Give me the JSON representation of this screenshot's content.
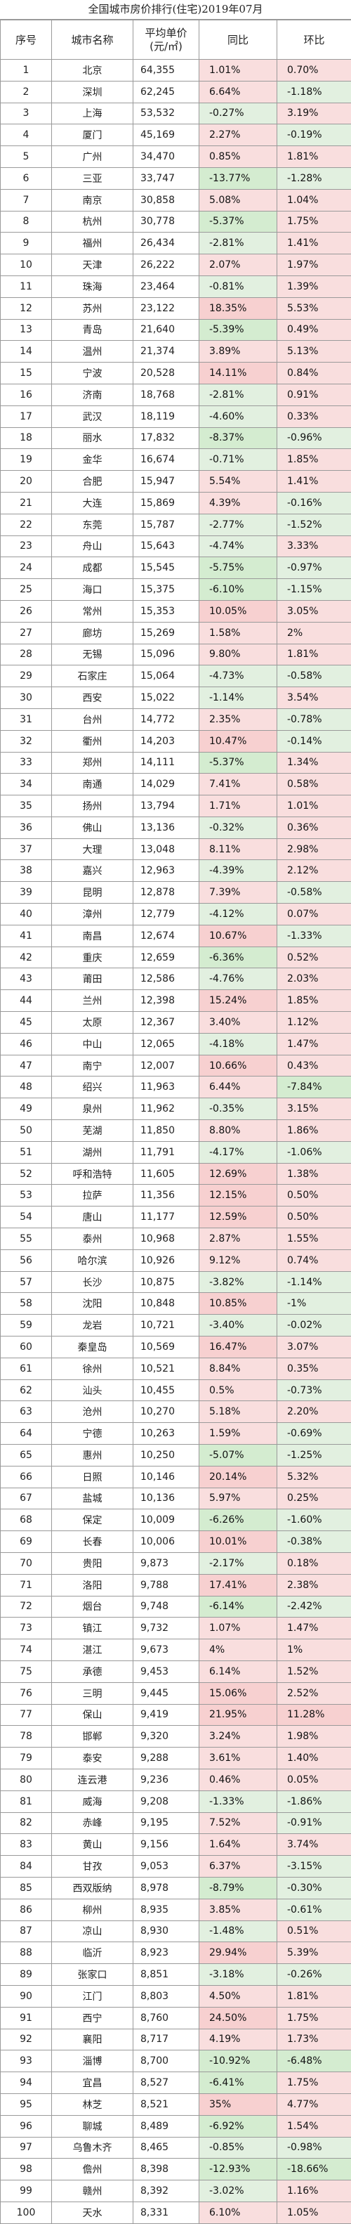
{
  "title": "全国城市房价排行(住宅)2019年07月",
  "headers": {
    "no": "序号",
    "city": "城市名称",
    "price_line1": "平均单价",
    "price_line2": "(元/㎡)",
    "yoy": "同比",
    "mom": "环比"
  },
  "rows": [
    [
      "1",
      "北京",
      "64,355",
      "1.01%",
      "0.70%"
    ],
    [
      "2",
      "深圳",
      "62,245",
      "6.64%",
      "-1.18%"
    ],
    [
      "3",
      "上海",
      "53,532",
      "-0.27%",
      "3.19%"
    ],
    [
      "4",
      "厦门",
      "45,169",
      "2.27%",
      "-0.19%"
    ],
    [
      "5",
      "广州",
      "34,470",
      "0.85%",
      "1.81%"
    ],
    [
      "6",
      "三亚",
      "33,747",
      "-13.77%",
      "-1.28%"
    ],
    [
      "7",
      "南京",
      "30,858",
      "5.08%",
      "1.04%"
    ],
    [
      "8",
      "杭州",
      "30,778",
      "-5.37%",
      "1.75%"
    ],
    [
      "9",
      "福州",
      "26,434",
      "-2.81%",
      "1.41%"
    ],
    [
      "10",
      "天津",
      "26,222",
      "2.07%",
      "1.97%"
    ],
    [
      "11",
      "珠海",
      "23,464",
      "-0.81%",
      "1.39%"
    ],
    [
      "12",
      "苏州",
      "23,122",
      "18.35%",
      "5.53%"
    ],
    [
      "13",
      "青岛",
      "21,640",
      "-5.39%",
      "0.49%"
    ],
    [
      "14",
      "温州",
      "21,374",
      "3.89%",
      "5.13%"
    ],
    [
      "15",
      "宁波",
      "20,528",
      "14.11%",
      "0.84%"
    ],
    [
      "16",
      "济南",
      "18,768",
      "-2.81%",
      "0.91%"
    ],
    [
      "17",
      "武汉",
      "18,119",
      "-4.60%",
      "0.33%"
    ],
    [
      "18",
      "丽水",
      "17,832",
      "-8.37%",
      "-0.96%"
    ],
    [
      "19",
      "金华",
      "16,674",
      "-0.71%",
      "1.85%"
    ],
    [
      "20",
      "合肥",
      "15,947",
      "5.54%",
      "1.41%"
    ],
    [
      "21",
      "大连",
      "15,869",
      "4.39%",
      "-0.16%"
    ],
    [
      "22",
      "东莞",
      "15,787",
      "-2.77%",
      "-1.52%"
    ],
    [
      "23",
      "舟山",
      "15,643",
      "-4.74%",
      "3.33%"
    ],
    [
      "24",
      "成都",
      "15,545",
      "-5.75%",
      "-0.97%"
    ],
    [
      "25",
      "海口",
      "15,375",
      "-6.10%",
      "-1.15%"
    ],
    [
      "26",
      "常州",
      "15,353",
      "10.05%",
      "3.05%"
    ],
    [
      "27",
      "廊坊",
      "15,269",
      "1.58%",
      "2%"
    ],
    [
      "28",
      "无锡",
      "15,096",
      "9.80%",
      "1.81%"
    ],
    [
      "29",
      "石家庄",
      "15,064",
      "-4.73%",
      "-0.58%"
    ],
    [
      "30",
      "西安",
      "15,022",
      "-1.14%",
      "3.54%"
    ],
    [
      "31",
      "台州",
      "14,772",
      "2.35%",
      "-0.78%"
    ],
    [
      "32",
      "衢州",
      "14,203",
      "10.47%",
      "-0.14%"
    ],
    [
      "33",
      "郑州",
      "14,111",
      "-5.37%",
      "1.34%"
    ],
    [
      "34",
      "南通",
      "14,029",
      "7.41%",
      "0.58%"
    ],
    [
      "35",
      "扬州",
      "13,794",
      "1.71%",
      "1.01%"
    ],
    [
      "36",
      "佛山",
      "13,136",
      "-0.32%",
      "0.36%"
    ],
    [
      "37",
      "大理",
      "13,048",
      "8.11%",
      "2.98%"
    ],
    [
      "38",
      "嘉兴",
      "12,963",
      "-4.39%",
      "2.12%"
    ],
    [
      "39",
      "昆明",
      "12,878",
      "7.39%",
      "-0.58%"
    ],
    [
      "40",
      "漳州",
      "12,779",
      "-4.12%",
      "0.07%"
    ],
    [
      "41",
      "南昌",
      "12,674",
      "10.67%",
      "-1.33%"
    ],
    [
      "42",
      "重庆",
      "12,659",
      "-6.36%",
      "0.52%"
    ],
    [
      "43",
      "莆田",
      "12,586",
      "-4.76%",
      "2.03%"
    ],
    [
      "44",
      "兰州",
      "12,398",
      "15.24%",
      "1.85%"
    ],
    [
      "45",
      "太原",
      "12,367",
      "3.40%",
      "1.12%"
    ],
    [
      "46",
      "中山",
      "12,065",
      "-4.18%",
      "1.47%"
    ],
    [
      "47",
      "南宁",
      "12,007",
      "10.66%",
      "0.43%"
    ],
    [
      "48",
      "绍兴",
      "11,963",
      "6.44%",
      "-7.84%"
    ],
    [
      "49",
      "泉州",
      "11,962",
      "-0.35%",
      "3.15%"
    ],
    [
      "50",
      "芜湖",
      "11,850",
      "8.80%",
      "1.86%"
    ],
    [
      "51",
      "湖州",
      "11,791",
      "-4.17%",
      "-1.06%"
    ],
    [
      "52",
      "呼和浩特",
      "11,605",
      "12.69%",
      "1.38%"
    ],
    [
      "53",
      "拉萨",
      "11,356",
      "12.15%",
      "0.50%"
    ],
    [
      "54",
      "唐山",
      "11,177",
      "12.59%",
      "0.50%"
    ],
    [
      "55",
      "泰州",
      "10,968",
      "2.87%",
      "1.55%"
    ],
    [
      "56",
      "哈尔滨",
      "10,926",
      "9.12%",
      "0.74%"
    ],
    [
      "57",
      "长沙",
      "10,875",
      "-3.82%",
      "-1.14%"
    ],
    [
      "58",
      "沈阳",
      "10,848",
      "10.85%",
      "-1%"
    ],
    [
      "59",
      "龙岩",
      "10,721",
      "-3.40%",
      "-0.02%"
    ],
    [
      "60",
      "秦皇岛",
      "10,569",
      "16.47%",
      "3.07%"
    ],
    [
      "61",
      "徐州",
      "10,521",
      "8.84%",
      "0.35%"
    ],
    [
      "62",
      "汕头",
      "10,455",
      "0.5%",
      "-0.73%"
    ],
    [
      "63",
      "沧州",
      "10,270",
      "5.18%",
      "2.20%"
    ],
    [
      "64",
      "宁德",
      "10,263",
      "1.59%",
      "-0.69%"
    ],
    [
      "65",
      "惠州",
      "10,250",
      "-5.07%",
      "-1.25%"
    ],
    [
      "66",
      "日照",
      "10,146",
      "20.14%",
      "5.32%"
    ],
    [
      "67",
      "盐城",
      "10,136",
      "5.97%",
      "0.25%"
    ],
    [
      "68",
      "保定",
      "10,009",
      "-6.26%",
      "-1.60%"
    ],
    [
      "69",
      "长春",
      "10,006",
      "10.01%",
      "-0.38%"
    ],
    [
      "70",
      "贵阳",
      "9,873",
      "-2.17%",
      "0.18%"
    ],
    [
      "71",
      "洛阳",
      "9,788",
      "17.41%",
      "2.38%"
    ],
    [
      "72",
      "烟台",
      "9,748",
      "-6.14%",
      "-2.42%"
    ],
    [
      "73",
      "镇江",
      "9,732",
      "1.07%",
      "1.47%"
    ],
    [
      "74",
      "湛江",
      "9,673",
      "4%",
      "1%"
    ],
    [
      "75",
      "承德",
      "9,453",
      "6.14%",
      "1.52%"
    ],
    [
      "76",
      "三明",
      "9,445",
      "15.06%",
      "2.52%"
    ],
    [
      "77",
      "保山",
      "9,419",
      "21.95%",
      "11.28%"
    ],
    [
      "78",
      "邯郸",
      "9,320",
      "3.24%",
      "1.98%"
    ],
    [
      "79",
      "泰安",
      "9,288",
      "3.61%",
      "1.40%"
    ],
    [
      "80",
      "连云港",
      "9,236",
      "0.46%",
      "0.05%"
    ],
    [
      "81",
      "威海",
      "9,208",
      "-1.33%",
      "-1.86%"
    ],
    [
      "82",
      "赤峰",
      "9,195",
      "7.52%",
      "-0.91%"
    ],
    [
      "83",
      "黄山",
      "9,156",
      "1.64%",
      "3.74%"
    ],
    [
      "84",
      "甘孜",
      "9,053",
      "6.37%",
      "-3.15%"
    ],
    [
      "85",
      "西双版纳",
      "8,978",
      "-8.79%",
      "-0.30%"
    ],
    [
      "86",
      "柳州",
      "8,935",
      "3.85%",
      "-0.61%"
    ],
    [
      "87",
      "凉山",
      "8,930",
      "-1.48%",
      "0.51%"
    ],
    [
      "88",
      "临沂",
      "8,923",
      "29.94%",
      "5.39%"
    ],
    [
      "89",
      "张家口",
      "8,851",
      "-3.18%",
      "-0.26%"
    ],
    [
      "90",
      "江门",
      "8,803",
      "4.50%",
      "1.81%"
    ],
    [
      "91",
      "西宁",
      "8,760",
      "24.50%",
      "1.75%"
    ],
    [
      "92",
      "襄阳",
      "8,717",
      "4.19%",
      "1.73%"
    ],
    [
      "93",
      "淄博",
      "8,700",
      "-10.92%",
      "-6.48%"
    ],
    [
      "94",
      "宜昌",
      "8,527",
      "-6.41%",
      "1.75%"
    ],
    [
      "95",
      "林芝",
      "8,521",
      "35%",
      "4.77%"
    ],
    [
      "96",
      "聊城",
      "8,489",
      "-6.92%",
      "1.54%"
    ],
    [
      "97",
      "乌鲁木齐",
      "8,465",
      "-0.85%",
      "-0.98%"
    ],
    [
      "98",
      "儋州",
      "8,398",
      "-12.93%",
      "-18.66%"
    ],
    [
      "99",
      "赣州",
      "8,392",
      "-3.02%",
      "1.16%"
    ],
    [
      "100",
      "天水",
      "8,331",
      "6.10%",
      "1.05%"
    ]
  ],
  "colors": {
    "positive_bg": "#f9dede",
    "negative_bg": "#e2f0e0",
    "border": "#9a9a9a"
  }
}
